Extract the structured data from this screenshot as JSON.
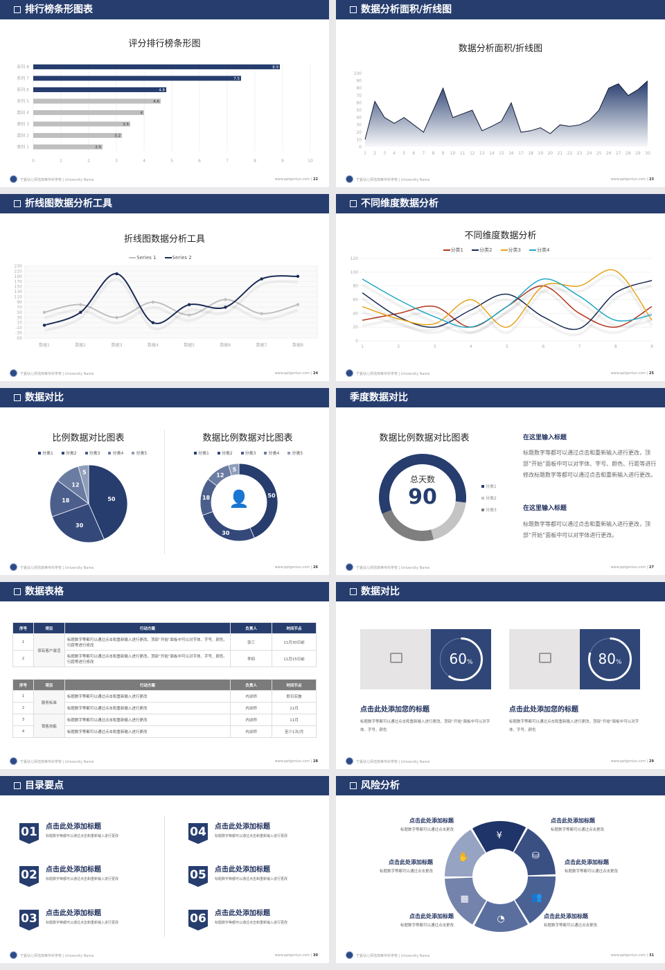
{
  "footer": {
    "school": "宁夏幼儿师范高等专科学校 | University Name",
    "site": "www.pptgenius.com"
  },
  "colors": {
    "navy": "#263d6e",
    "gray": "#bfbfbf",
    "red": "#c0392b",
    "orange": "#e8a317",
    "teal": "#1fa8c4"
  },
  "slides": [
    {
      "header": "排行榜条形图表",
      "page": "22",
      "chart_data": {
        "type": "bar",
        "orientation": "horizontal",
        "title": "评分排行榜条形图",
        "categories": [
          "系列 8",
          "系列 7",
          "系列 6",
          "系列 5",
          "类别 4",
          "类别 3",
          "类别 2",
          "类别 1"
        ],
        "values": [
          8.9,
          7.5,
          4.8,
          4.6,
          4,
          3.5,
          3.2,
          2.5
        ],
        "highlight": [
          true,
          true,
          true,
          false,
          false,
          false,
          false,
          false
        ],
        "xlim": [
          0,
          10
        ],
        "xticks": [
          0,
          1,
          2,
          3,
          4,
          5,
          6,
          7,
          8,
          9,
          10
        ]
      }
    },
    {
      "header": "数据分析面积/折线图",
      "page": "23",
      "chart_data": {
        "type": "area",
        "title": "数据分析面积/折线图",
        "x": [
          1,
          2,
          3,
          4,
          5,
          6,
          7,
          8,
          9,
          10,
          11,
          12,
          13,
          14,
          15,
          16,
          17,
          18,
          19,
          20,
          21,
          22,
          23,
          24,
          25,
          26,
          27,
          28,
          29,
          30
        ],
        "values": [
          10,
          62,
          40,
          32,
          40,
          30,
          20,
          50,
          80,
          40,
          45,
          50,
          22,
          28,
          35,
          60,
          20,
          22,
          26,
          18,
          30,
          28,
          30,
          36,
          50,
          80,
          86,
          70,
          78,
          90
        ],
        "ylim": [
          0,
          100
        ],
        "yticks": [
          0,
          10,
          20,
          30,
          40,
          50,
          60,
          70,
          80,
          90,
          100
        ]
      }
    },
    {
      "header": "折线图数据分析工具",
      "page": "24",
      "chart_data": {
        "type": "line",
        "smooth": true,
        "title": "折线图数据分析工具",
        "categories": [
          "数据1",
          "数据2",
          "数据3",
          "数据4",
          "数据5",
          "数据6",
          "数据7",
          "数据8"
        ],
        "series": [
          {
            "name": "Series 1",
            "values": [
              50,
              80,
              30,
              90,
              40,
              100,
              45,
              80
            ],
            "color": "#bfbfbf"
          },
          {
            "name": "Series 2",
            "values": [
              0,
              50,
              200,
              10,
              80,
              70,
              180,
              190
            ],
            "color": "#1a2a55"
          }
        ],
        "ylim": [
          -50,
          230
        ],
        "yticks": [
          -50,
          -30,
          -10,
          10,
          30,
          50,
          70,
          90,
          110,
          130,
          150,
          170,
          190,
          210,
          230
        ],
        "legend": "top"
      }
    },
    {
      "header": "不同维度数据分析",
      "page": "25",
      "chart_data": {
        "type": "line",
        "smooth": true,
        "title": "不同维度数据分析",
        "categories": [
          "1",
          "2",
          "3",
          "4",
          "5",
          "6",
          "7",
          "8",
          "9"
        ],
        "series": [
          {
            "name": "分类1",
            "values": [
              30,
              40,
              50,
              20,
              50,
              80,
              40,
              20,
              50
            ],
            "color": "#b5361c"
          },
          {
            "name": "分类2",
            "values": [
              70,
              35,
              20,
              45,
              68,
              35,
              18,
              70,
              88
            ],
            "color": "#1a2a55"
          },
          {
            "name": "分类3",
            "values": [
              50,
              32,
              25,
              60,
              20,
              80,
              80,
              102,
              30
            ],
            "color": "#e8a317"
          },
          {
            "name": "分类4",
            "values": [
              90,
              60,
              35,
              20,
              50,
              90,
              65,
              30,
              38
            ],
            "color": "#1fa8c4"
          }
        ],
        "ylim": [
          0,
          120
        ],
        "yticks": [
          0,
          20,
          40,
          60,
          80,
          100,
          120
        ],
        "legend": "top"
      }
    },
    {
      "header": "数据对比",
      "page": "26",
      "chart_data": [
        {
          "type": "pie",
          "title": "比例数据对比图表",
          "categories": [
            "分类1",
            "分类2",
            "分类3",
            "分类4",
            "分类5"
          ],
          "values": [
            50,
            30,
            18,
            12,
            5
          ],
          "colors": [
            "#263d6e",
            "#34497a",
            "#4c5f8c",
            "#6b7ca2",
            "#8f9dbb"
          ]
        },
        {
          "type": "donut",
          "title": "数据比例数据对比图表",
          "categories": [
            "分类1",
            "分类2",
            "分类3",
            "分类4",
            "分类5"
          ],
          "values": [
            50,
            30,
            18,
            12,
            5
          ],
          "colors": [
            "#263d6e",
            "#34497a",
            "#4c5f8c",
            "#6b7ca2",
            "#8f9dbb"
          ],
          "center_icon": "user-presenter-icon"
        }
      ]
    },
    {
      "header": "季度数据对比",
      "page": "27",
      "chart_data": {
        "type": "donut",
        "title": "数据比例数据对比图表",
        "center_label": "总天数",
        "center_value": "90",
        "categories": [
          "分类1",
          "分类2",
          "分类3"
        ],
        "values": [
          58,
          19,
          23
        ],
        "colors": [
          "#263d6e",
          "#c4c4c4",
          "#7f7f7f"
        ]
      },
      "notes": [
        {
          "title": "在这里输入标题",
          "text": "标题数字等都可以通过点击和重新输入进行更改，顶部“开始”面板中可以对字体、字号、颜色、行距等进行修改标题数字等都可以通过点击和重新输入进行更改。"
        },
        {
          "title": "在这里输入标题",
          "text": "标题数字等都可以通过点击和重新输入进行更改，顶部“开始”面板中可以对字体进行更改。"
        }
      ]
    },
    {
      "header": "数据表格",
      "page": "28",
      "table1": {
        "headers": [
          "序号",
          "项目",
          "行动方案",
          "负责人",
          "时间节点"
        ],
        "group": "保有客户激活",
        "rows": [
          [
            "1",
            "标题数字等都可以通过点击和重新输入进行更改，顶部“开始”面板中可以对字体、字号、颜色、行距等进行修改",
            "张三",
            "11月30日前"
          ],
          [
            "2",
            "标题数字等都可以通过点击和重新输入进行更改，顶部“开始”面板中可以对字体、字号、颜色、行距等进行修改",
            "李四",
            "11月15日前"
          ]
        ]
      },
      "table2": {
        "headers": [
          "序号",
          "项目",
          "行动方案",
          "负责人",
          "时间节点"
        ],
        "groups": [
          "服务标准",
          "销售技能"
        ],
        "rows": [
          [
            "1",
            "标题数字等都可以通过点击和重新输入进行更改",
            "内训师",
            "即日实施"
          ],
          [
            "2",
            "标题数字等都可以通过点击和重新输入进行更改",
            "内训师",
            "11月"
          ],
          [
            "3",
            "标题数字等都可以通过点击和重新输入进行更改",
            "内训师",
            "11月"
          ],
          [
            "4",
            "标题数字等都可以通过点击和重新输入进行更改",
            "内训师",
            "至少1次/月"
          ]
        ]
      }
    },
    {
      "header": "数据对比",
      "page": "29",
      "cards": [
        {
          "percent": 60,
          "num": "60",
          "unit": "%",
          "title": "点击此处添加您的标题",
          "text": "标题数字等都可以通过点击和重新输入进行更改，顶部“开始”面板中可以对字体、字号、颜色"
        },
        {
          "percent": 80,
          "num": "80",
          "unit": "%",
          "title": "点击此处添加您的标题",
          "text": "标题数字等都可以通过点击和重新输入进行更改，顶部“开始”面板中可以对字体、字号、颜色"
        }
      ]
    },
    {
      "header": "目录要点",
      "page": "30",
      "items": [
        {
          "num": "01",
          "title": "点击此处添加标题",
          "text": "标题数字等都可以通过点击和重新输入进行更改"
        },
        {
          "num": "02",
          "title": "点击此处添加标题",
          "text": "标题数字等都可以通过点击和重新输入进行更改"
        },
        {
          "num": "03",
          "title": "点击此处添加标题",
          "text": "标题数字等都可以通过点击和重新输入进行更改"
        },
        {
          "num": "04",
          "title": "点击此处添加标题",
          "text": "标题数字等都可以通过点击和重新输入进行更改"
        },
        {
          "num": "05",
          "title": "点击此处添加标题",
          "text": "标题数字等都可以通过点击和重新输入进行更改"
        },
        {
          "num": "06",
          "title": "点击此处添加标题",
          "text": "标题数字等都可以通过点击和重新输入进行更改"
        }
      ]
    },
    {
      "header": "风险分析",
      "page": "31",
      "items": [
        {
          "title": "点击此处添加标题",
          "text": "标题数字等都可以通过点击更改",
          "icon": "money-bag-icon"
        },
        {
          "title": "点击此处添加标题",
          "text": "标题数字等都可以通过点击更改",
          "icon": "coins-icon"
        },
        {
          "title": "点击此处添加标题",
          "text": "标题数字等都可以通过点击更改",
          "icon": "users-icon"
        },
        {
          "title": "点击此处添加标题",
          "text": "标题数字等都可以通过点击更改",
          "icon": "pie-chart-icon"
        },
        {
          "title": "点击此处添加标题",
          "text": "标题数字等都可以通过点击更改",
          "icon": "building-icon"
        },
        {
          "title": "点击此处添加标题",
          "text": "标题数字等都可以通过点击更改",
          "icon": "hand-money-icon"
        }
      ]
    }
  ]
}
